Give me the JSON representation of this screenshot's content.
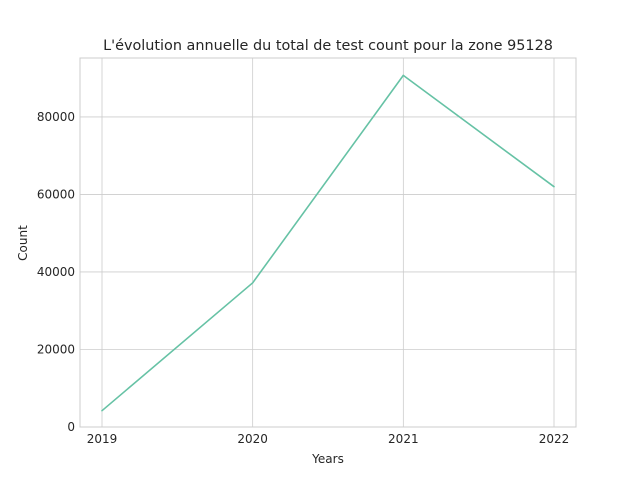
{
  "chart_data": {
    "type": "line",
    "title": "L'évolution annuelle du total de test count pour la zone 95128",
    "xlabel": "Years",
    "ylabel": "Count",
    "categories": [
      "2019",
      "2020",
      "2021",
      "2022"
    ],
    "series": [
      {
        "values": [
          4200,
          37200,
          90700,
          62000
        ],
        "color": "#66c2a5"
      }
    ],
    "ylim": [
      0,
      95200
    ],
    "yticks": [
      0,
      20000,
      40000,
      60000,
      80000
    ],
    "ytick_labels": [
      "0",
      "20000",
      "40000",
      "60000",
      "80000"
    ],
    "grid": true,
    "background": "#ffffff",
    "grid_color": "#cccccc"
  }
}
